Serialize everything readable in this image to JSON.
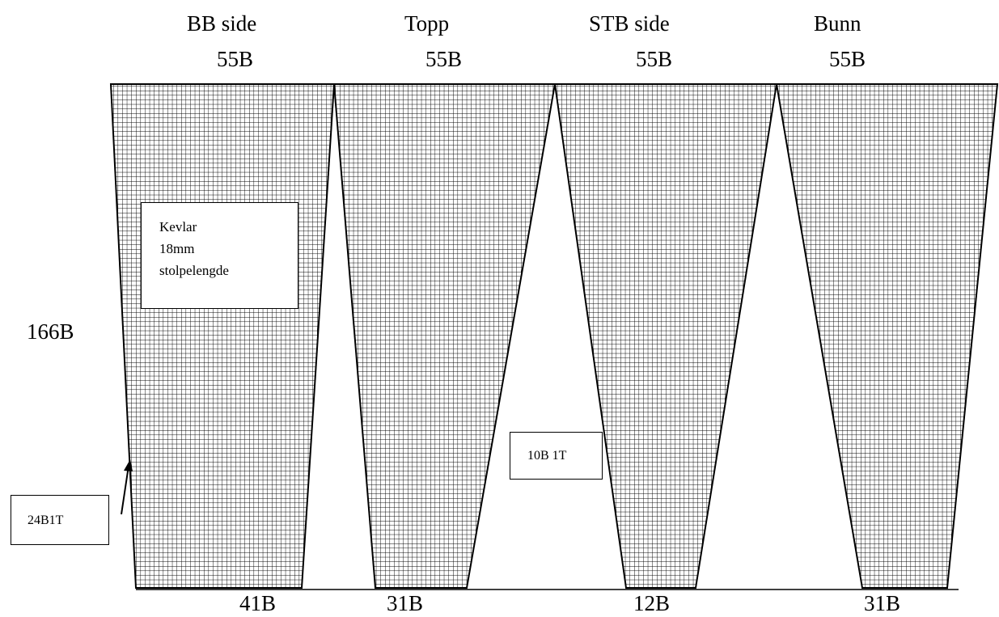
{
  "panels": [
    {
      "name": "BB side",
      "top_count": "55B",
      "bottom_count": "41B"
    },
    {
      "name": "Topp",
      "top_count": "55B",
      "bottom_count": "31B"
    },
    {
      "name": "STB side",
      "top_count": "55B",
      "bottom_count": "12B"
    },
    {
      "name": "Bunn",
      "top_count": "55B",
      "bottom_count": "31B"
    }
  ],
  "side_label": "166B",
  "material_note": {
    "line1": "Kevlar",
    "line2": "18mm",
    "line3": "stolpelengde"
  },
  "taper_note_left": "24B1T",
  "taper_note_middle": "10B 1T",
  "colors": {
    "line": "#000000",
    "background": "#ffffff"
  }
}
